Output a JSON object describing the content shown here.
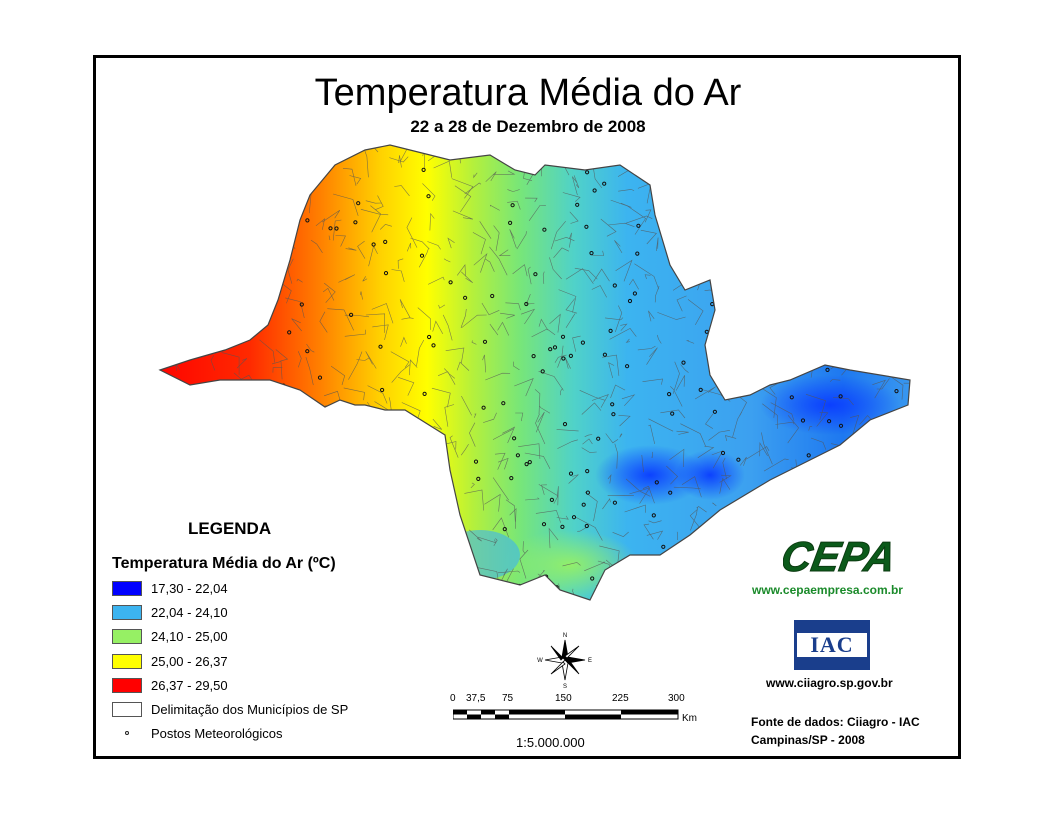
{
  "title": "Temperatura Média do Ar",
  "subtitle": "22 a 28 de Dezembro de 2008",
  "legend": {
    "heading": "LEGENDA",
    "subheading": "Temperatura Média do Ar (ºC)",
    "classes": [
      {
        "label": "17,30 - 22,04",
        "color": "#0000ff"
      },
      {
        "label": "22,04 - 24,10",
        "color": "#3cb4f0"
      },
      {
        "label": "24,10 - 25,00",
        "color": "#96f064"
      },
      {
        "label": "25,00 - 26,37",
        "color": "#ffff00"
      },
      {
        "label": "26,37 - 29,50",
        "color": "#ff0000"
      }
    ],
    "municipalities_label": "Delimitação dos Municípios de SP",
    "stations_label": "Postos Meteorológicos"
  },
  "compass": {
    "n": "N",
    "s": "S",
    "e": "E",
    "w": "W"
  },
  "scale": {
    "ticks": [
      "0",
      "37,5",
      "75",
      "150",
      "225",
      "300"
    ],
    "unit": "Km",
    "ratio": "1:5.000.000"
  },
  "logos": {
    "cepa_text": "CEPA",
    "cepa_url": "www.cepaempresa.com.br",
    "iac_text": "IAC",
    "iac_url": "www.ciiagro.sp.gov.br"
  },
  "source": {
    "line1": "Fonte de dados: Ciiagro - IAC",
    "line2": "Campinas/SP - 2008"
  },
  "map_colors": {
    "red": "#ff0000",
    "orange": "#ff7f00",
    "yellow": "#ffff00",
    "green": "#96f064",
    "light_blue": "#3cb4f0",
    "blue": "#0000ff",
    "border": "#555555"
  }
}
